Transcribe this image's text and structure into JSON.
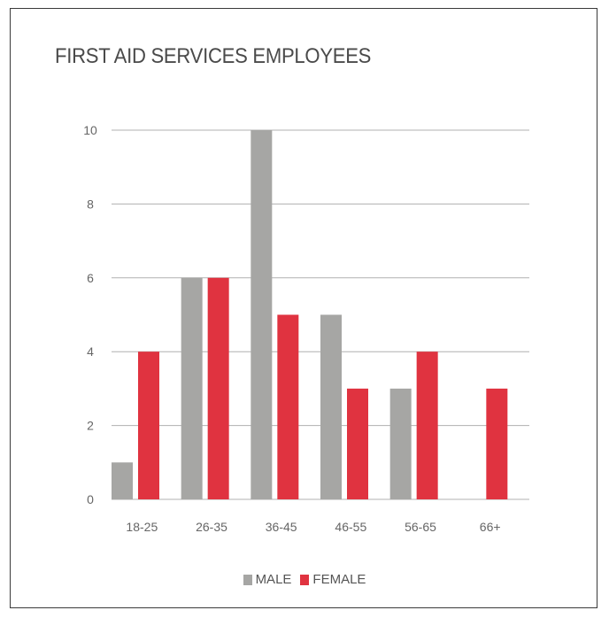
{
  "chart_data": {
    "type": "bar",
    "title": "FIRST AID SERVICES EMPLOYEES",
    "categories": [
      "18-25",
      "26-35",
      "36-45",
      "46-55",
      "56-65",
      "66+"
    ],
    "series": [
      {
        "name": "MALE",
        "color": "#a6a6a4",
        "values": [
          1,
          6,
          10,
          5,
          3,
          0
        ]
      },
      {
        "name": "FEMALE",
        "color": "#e03340",
        "values": [
          4,
          6,
          5,
          3,
          4,
          3
        ]
      }
    ],
    "ylim": [
      0,
      10
    ],
    "yticks": [
      0,
      2,
      4,
      6,
      8,
      10
    ],
    "grid": true,
    "legend_position": "bottom"
  }
}
